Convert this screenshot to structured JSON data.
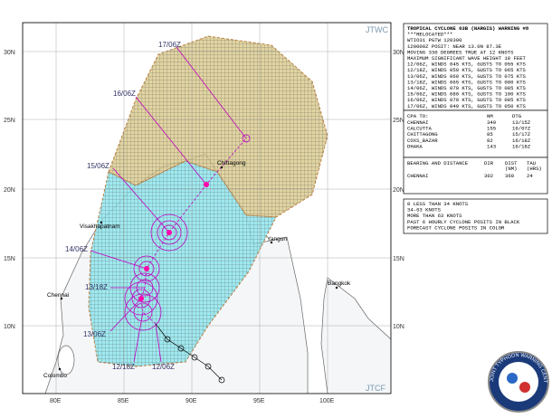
{
  "map": {
    "agency": "JTWC",
    "source": "JTCF",
    "lat_labels": [
      "30N",
      "25N",
      "20N",
      "15N",
      "10N"
    ],
    "lon_labels": [
      "80E",
      "85E",
      "90E",
      "95E",
      "100E"
    ],
    "cities": [
      "Chittagong",
      "Visakhapatnam",
      "Chennai",
      "Colombo",
      "Yangon",
      "Bangkok"
    ],
    "forecast_labels": [
      "17/06Z",
      "16/06Z",
      "15/06Z",
      "14/06Z",
      "13/18Z",
      "13/06Z",
      "12/18Z",
      "12/06Z"
    ]
  },
  "warning": {
    "lines": [
      "TROPICAL CYCLONE 03B (NARGIS) WARNING #8",
      "***RELOCATED***",
      "WTIO31 PGTW 120300",
      "120000Z POSIT: NEAR 13.0N 87.3E",
      "MOVING 330 DEGREES TRUE AT 12 KNOTS",
      "MAXIMUM SIGNIFICANT WAVE HEIGHT 18 FEET",
      "12/06Z, WINDS 045 KTS, GUSTS TO 055 KTS",
      "12/18Z, WINDS 050 KTS, GUSTS TO 065 KTS",
      "13/06Z, WINDS 060 KTS, GUSTS TO 075 KTS",
      "13/18Z, WINDS 065 KTS, GUSTS TO 080 KTS",
      "14/06Z, WINDS 070 KTS, GUSTS TO 085 KTS",
      "15/06Z, WINDS 080 KTS, GUSTS TO 100 KTS",
      "16/06Z, WINDS 070 KTS, GUSTS TO 085 KTS",
      "17/06Z, WINDS 040 KTS, GUSTS TO 050 KTS"
    ],
    "cpa": {
      "header": [
        "CPA TO:",
        "NM",
        "DTG"
      ],
      "rows": [
        [
          "CHENNAI",
          "349",
          "13/15Z"
        ],
        [
          "CALCUTTA",
          "155",
          "16/07Z"
        ],
        [
          "CHITTAGONG",
          "85",
          "15/17Z"
        ],
        [
          "COXS_BAZAR",
          "82",
          "16/18Z"
        ],
        [
          "DHAKA",
          "143",
          "16/18Z"
        ]
      ]
    },
    "bearing": {
      "header": [
        "BEARING AND DISTANCE",
        "DIR",
        "DIST",
        "TAU"
      ],
      "units": [
        "(NM)",
        "(HRS)"
      ],
      "row": [
        "CHENNAI",
        "302",
        "360",
        "24"
      ]
    },
    "legend": [
      "0 LESS THAN 34 KNOTS",
      "34-63 KNOTS",
      "MORE THAN 63 KNOTS",
      "PAST 6 HOURLY CYCLONE POSITS IN BLACK",
      "FORECAST CYCLONE POSITS IN COLOR"
    ]
  },
  "logo": {
    "text": "JOINT TYPHOON WARNING CENTER"
  }
}
